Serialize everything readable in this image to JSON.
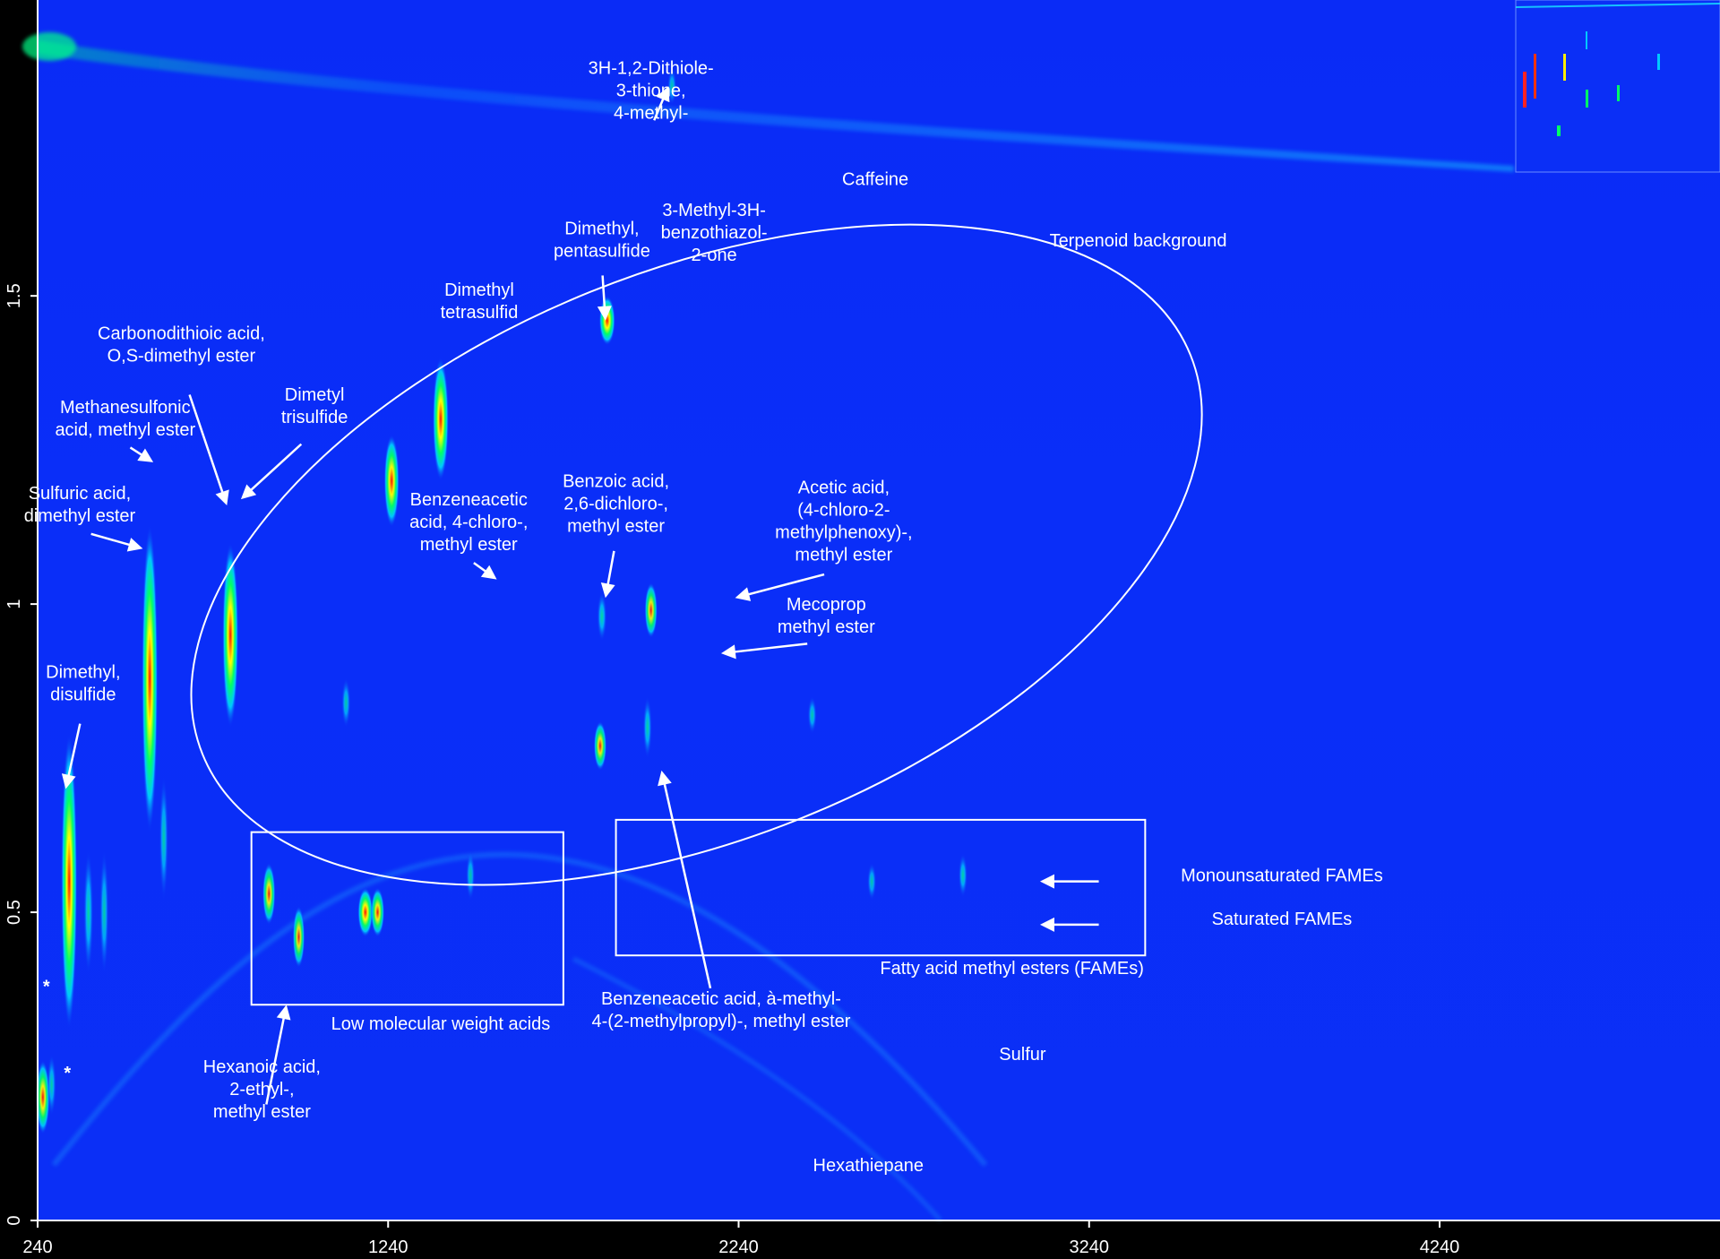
{
  "chart_data": {
    "type": "heatmap",
    "title": "",
    "xlabel": "",
    "ylabel": "",
    "xlim": [
      240,
      5040
    ],
    "ylim": [
      0,
      1.98
    ],
    "x_ticks": [
      "240",
      "1240",
      "2240",
      "3240",
      "4240"
    ],
    "x_tick_values": [
      240,
      1240,
      2240,
      3240,
      4240
    ],
    "y_ticks": [
      "0",
      "0.5",
      "1",
      "1.5"
    ],
    "y_tick_values": [
      0,
      0.5,
      1,
      1.5
    ],
    "colormap": [
      "#0b2ff6",
      "#00c8ff",
      "#00ff66",
      "#ffff00",
      "#ff0000"
    ],
    "annotations": [
      {
        "id": "dithiole",
        "lines": [
          "3H-1,2-Dithiole-",
          "3-thione,",
          "4-methyl-"
        ],
        "x": 1990,
        "y": 1.86,
        "arrow_to": [
          2040,
          1.84
        ]
      },
      {
        "id": "caffeine",
        "lines": [
          "Caffeine"
        ],
        "x": 2630,
        "y": 1.68
      },
      {
        "id": "benzothiazol",
        "lines": [
          "3-Methyl-3H-",
          "benzothiazol-",
          "2-one"
        ],
        "x": 2170,
        "y": 1.63
      },
      {
        "id": "pentasulfide",
        "lines": [
          "Dimethyl,",
          "pentasulfide"
        ],
        "x": 1850,
        "y": 1.6,
        "arrow_to": [
          1860,
          1.46
        ]
      },
      {
        "id": "terpenoid",
        "lines": [
          "Terpenoid background"
        ],
        "x": 3380,
        "y": 1.58
      },
      {
        "id": "tetrasulfid",
        "lines": [
          "Dimethyl",
          "tetrasulfid"
        ],
        "x": 1500,
        "y": 1.5
      },
      {
        "id": "carbonodithioic",
        "lines": [
          "Carbonodithioic acid,",
          "O,S-dimethyl ester"
        ],
        "x": 650,
        "y": 1.43,
        "arrow_to": [
          780,
          1.16
        ]
      },
      {
        "id": "trisulfide",
        "lines": [
          "Dimetyl",
          "trisulfide"
        ],
        "x": 1030,
        "y": 1.33,
        "arrow_to": [
          820,
          1.17
        ]
      },
      {
        "id": "methanesulfonic",
        "lines": [
          "Methanesulfonic",
          "acid, methyl ester"
        ],
        "x": 490,
        "y": 1.31,
        "arrow_to": [
          570,
          1.23
        ]
      },
      {
        "id": "sulfuric",
        "lines": [
          "Sulfuric acid,",
          "dimethyl ester"
        ],
        "x": 360,
        "y": 1.17,
        "arrow_to": [
          540,
          1.09
        ]
      },
      {
        "id": "benzeneacetic-chloro",
        "lines": [
          "Benzeneacetic",
          "acid, 4-chloro-,",
          "methyl ester"
        ],
        "x": 1470,
        "y": 1.16,
        "arrow_to": [
          1550,
          1.04
        ]
      },
      {
        "id": "benzoic",
        "lines": [
          "Benzoic acid,",
          "2,6-dichloro-,",
          "methyl ester"
        ],
        "x": 1890,
        "y": 1.19,
        "arrow_to": [
          1860,
          1.01
        ]
      },
      {
        "id": "acetic",
        "lines": [
          "Acetic acid,",
          "(4-chloro-2-",
          "methylphenoxy)-,",
          "methyl ester"
        ],
        "x": 2540,
        "y": 1.18,
        "arrow_to": [
          2230,
          1.01
        ]
      },
      {
        "id": "mecoprop",
        "lines": [
          "Mecoprop",
          "methyl ester"
        ],
        "x": 2490,
        "y": 0.99,
        "arrow_to": [
          2190,
          0.92
        ]
      },
      {
        "id": "disulfide",
        "lines": [
          "Dimethyl,",
          "disulfide"
        ],
        "x": 370,
        "y": 0.88,
        "arrow_to": [
          320,
          0.7
        ]
      },
      {
        "id": "mufa",
        "lines": [
          "Monounsaturated FAMEs"
        ],
        "x": 3790,
        "y": 0.55,
        "arrow_to": [
          3100,
          0.55
        ]
      },
      {
        "id": "sfa",
        "lines": [
          "Saturated FAMEs"
        ],
        "x": 3790,
        "y": 0.48,
        "arrow_to": [
          3100,
          0.48
        ]
      },
      {
        "id": "fames",
        "lines": [
          "Fatty acid methyl esters (FAMEs)"
        ],
        "x": 3020,
        "y": 0.4
      },
      {
        "id": "lmw",
        "lines": [
          "Low molecular weight acids"
        ],
        "x": 1390,
        "y": 0.31
      },
      {
        "id": "ibuprofen",
        "lines": [
          "Benzeneacetic acid, à-methyl-",
          "4-(2-methylpropyl)-, methyl ester"
        ],
        "x": 2190,
        "y": 0.35,
        "arrow_to": [
          2020,
          0.73
        ]
      },
      {
        "id": "hexanoic",
        "lines": [
          "Hexanoic acid,",
          "2-ethyl-,",
          "methyl ester"
        ],
        "x": 880,
        "y": 0.24,
        "arrow_to": [
          950,
          0.35
        ]
      },
      {
        "id": "sulfur",
        "lines": [
          "Sulfur"
        ],
        "x": 3050,
        "y": 0.26
      },
      {
        "id": "hexathiepane",
        "lines": [
          "Hexathiepane"
        ],
        "x": 2610,
        "y": 0.08
      },
      {
        "id": "star1",
        "lines": [
          "*"
        ],
        "x": 265,
        "y": 0.37
      },
      {
        "id": "star2",
        "lines": [
          "*"
        ],
        "x": 325,
        "y": 0.23
      }
    ],
    "regions": [
      {
        "name": "terpenoid-ellipse",
        "shape": "ellipse",
        "center": [
          2120,
          1.08
        ],
        "rx": 1520,
        "ry": 0.46
      },
      {
        "name": "lmw-box",
        "shape": "rect",
        "x": [
          850,
          1740
        ],
        "y": [
          0.35,
          0.63
        ]
      },
      {
        "name": "fames-box",
        "shape": "rect",
        "x": [
          1890,
          3400
        ],
        "y": [
          0.43,
          0.65
        ]
      }
    ],
    "peaks": [
      {
        "x": 330,
        "y": 0.55,
        "h": 0.48,
        "i": 1.0
      },
      {
        "x": 255,
        "y": 0.2,
        "h": 0.12,
        "i": 0.85
      },
      {
        "x": 280,
        "y": 0.22,
        "h": 0.1,
        "i": 0.5
      },
      {
        "x": 385,
        "y": 0.5,
        "h": 0.2,
        "i": 0.6
      },
      {
        "x": 430,
        "y": 0.5,
        "h": 0.2,
        "i": 0.45
      },
      {
        "x": 560,
        "y": 0.88,
        "h": 0.5,
        "i": 1.0
      },
      {
        "x": 600,
        "y": 0.62,
        "h": 0.2,
        "i": 0.45
      },
      {
        "x": 790,
        "y": 0.95,
        "h": 0.3,
        "i": 1.0
      },
      {
        "x": 1250,
        "y": 1.2,
        "h": 0.15,
        "i": 0.95
      },
      {
        "x": 1390,
        "y": 1.3,
        "h": 0.2,
        "i": 1.0
      },
      {
        "x": 900,
        "y": 0.53,
        "h": 0.1,
        "i": 0.8
      },
      {
        "x": 985,
        "y": 0.46,
        "h": 0.1,
        "i": 0.75
      },
      {
        "x": 1175,
        "y": 0.5,
        "h": 0.08,
        "i": 0.95
      },
      {
        "x": 1210,
        "y": 0.5,
        "h": 0.08,
        "i": 0.85
      },
      {
        "x": 1120,
        "y": 0.84,
        "h": 0.08,
        "i": 0.45
      },
      {
        "x": 1475,
        "y": 0.56,
        "h": 0.08,
        "i": 0.4
      },
      {
        "x": 1865,
        "y": 1.46,
        "h": 0.08,
        "i": 1.0
      },
      {
        "x": 1845,
        "y": 0.77,
        "h": 0.08,
        "i": 0.8
      },
      {
        "x": 1850,
        "y": 0.98,
        "h": 0.08,
        "i": 0.6
      },
      {
        "x": 1990,
        "y": 0.99,
        "h": 0.09,
        "i": 0.8
      },
      {
        "x": 1980,
        "y": 0.8,
        "h": 0.1,
        "i": 0.55
      },
      {
        "x": 2450,
        "y": 0.82,
        "h": 0.06,
        "i": 0.45
      },
      {
        "x": 2620,
        "y": 0.55,
        "h": 0.06,
        "i": 0.4
      },
      {
        "x": 2880,
        "y": 0.56,
        "h": 0.07,
        "i": 0.5
      },
      {
        "x": 2050,
        "y": 1.84,
        "h": 0.06,
        "i": 0.4
      }
    ],
    "inset": {
      "position": "top-right"
    }
  }
}
